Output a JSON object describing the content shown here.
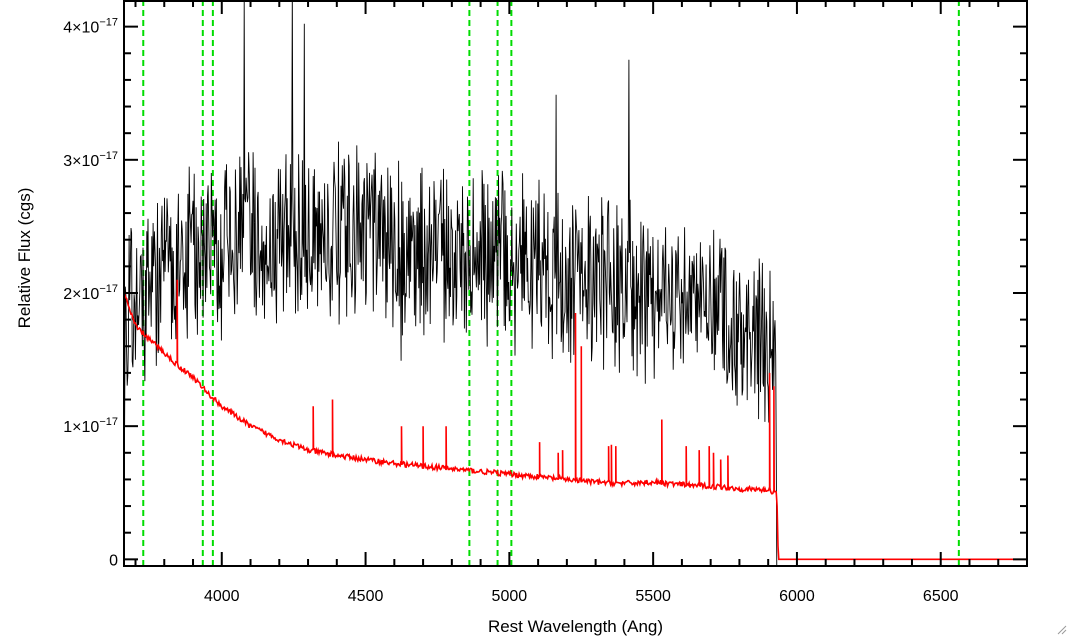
{
  "chart_data": {
    "type": "line",
    "title": "",
    "xlabel": "Rest Wavelength (Ang)",
    "ylabel": "Relative Flux (cgs)",
    "xlim": [
      3660,
      6800
    ],
    "ylim": [
      -0.05,
      4.2
    ],
    "y_unit_power": -17,
    "x_ticks": [
      4000,
      4500,
      5000,
      5500,
      6000,
      6500
    ],
    "x_tick_labels": [
      "4000",
      "4500",
      "5000",
      "5500",
      "6000",
      "6500"
    ],
    "y_ticks": [
      0,
      1,
      2,
      3,
      4
    ],
    "y_tick_labels": [
      {
        "mantissa": "",
        "base": "0",
        "exp": ""
      },
      {
        "mantissa": "1×10",
        "base": "",
        "exp": "−17"
      },
      {
        "mantissa": "2×10",
        "base": "",
        "exp": "−17"
      },
      {
        "mantissa": "3×10",
        "base": "",
        "exp": "−17"
      },
      {
        "mantissa": "4×10",
        "base": "",
        "exp": "−17"
      }
    ],
    "grid": false,
    "series": [
      {
        "color": "#000000",
        "style": "noisy-spectrum",
        "x": [
          3660,
          3700,
          3750,
          3800,
          3850,
          3900,
          4000,
          4100,
          4200,
          4300,
          4400,
          4500,
          4600,
          4700,
          4800,
          4900,
          5000,
          5100,
          5200,
          5300,
          5400,
          5500,
          5600,
          5700,
          5800,
          5850,
          5900,
          5930
        ],
        "y": [
          1.7,
          1.9,
          2.1,
          2.2,
          2.2,
          2.3,
          2.35,
          2.4,
          2.4,
          2.45,
          2.4,
          2.4,
          2.35,
          2.3,
          2.3,
          2.3,
          2.25,
          2.2,
          2.1,
          2.1,
          2.05,
          2.0,
          1.95,
          1.85,
          1.75,
          1.7,
          1.5,
          1.4
        ],
        "noise_amplitude": 0.55
      },
      {
        "color": "#ff0000",
        "style": "smooth-with-spikes",
        "x": [
          3660,
          3700,
          3750,
          3800,
          3850,
          3900,
          3950,
          4000,
          4100,
          4200,
          4300,
          4400,
          4500,
          4600,
          4700,
          4800,
          4900,
          5000,
          5100,
          5200,
          5300,
          5400,
          5500,
          5600,
          5700,
          5800,
          5900,
          5930,
          5935,
          6800
        ],
        "y": [
          2.0,
          1.75,
          1.65,
          1.55,
          1.45,
          1.37,
          1.25,
          1.15,
          1.0,
          0.9,
          0.82,
          0.78,
          0.75,
          0.72,
          0.7,
          0.68,
          0.66,
          0.64,
          0.62,
          0.6,
          0.58,
          0.57,
          0.58,
          0.56,
          0.55,
          0.53,
          0.52,
          0.5,
          0.0,
          0.0
        ],
        "spikes": [
          {
            "x": 3845,
            "y": 2.1
          },
          {
            "x": 4318,
            "y": 1.15
          },
          {
            "x": 4385,
            "y": 1.2
          },
          {
            "x": 4625,
            "y": 1.0
          },
          {
            "x": 4700,
            "y": 1.0
          },
          {
            "x": 4780,
            "y": 1.0
          },
          {
            "x": 5105,
            "y": 0.88
          },
          {
            "x": 5170,
            "y": 0.8
          },
          {
            "x": 5185,
            "y": 0.82
          },
          {
            "x": 5230,
            "y": 1.85
          },
          {
            "x": 5250,
            "y": 1.6
          },
          {
            "x": 5345,
            "y": 0.85
          },
          {
            "x": 5355,
            "y": 0.86
          },
          {
            "x": 5370,
            "y": 0.85
          },
          {
            "x": 5530,
            "y": 1.05
          },
          {
            "x": 5615,
            "y": 0.85
          },
          {
            "x": 5660,
            "y": 0.82
          },
          {
            "x": 5695,
            "y": 0.85
          },
          {
            "x": 5710,
            "y": 0.8
          },
          {
            "x": 5735,
            "y": 0.75
          },
          {
            "x": 5760,
            "y": 0.78
          },
          {
            "x": 5905,
            "y": 1.4
          },
          {
            "x": 5920,
            "y": 1.3
          }
        ]
      }
    ],
    "vertical_lines": {
      "color": "#00dd00",
      "style": "dashed",
      "x": [
        3727,
        3934,
        3969,
        4861,
        4959,
        5007,
        6563
      ]
    }
  }
}
